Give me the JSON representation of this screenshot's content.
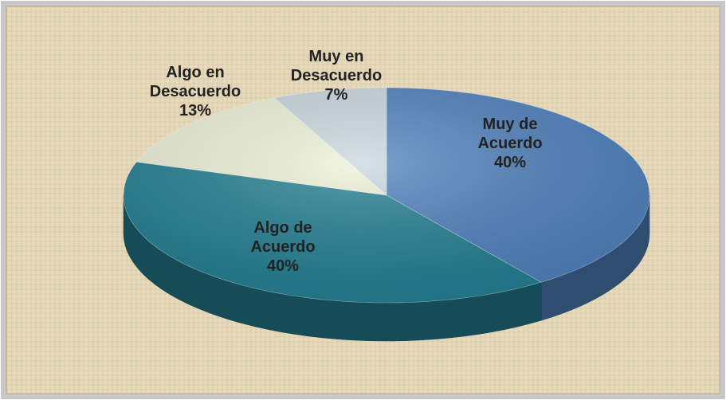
{
  "chart_data": {
    "type": "pie",
    "categories": [
      "Muy de Acuerdo",
      "Algo de Acuerdo",
      "Algo en Desacuerdo",
      "Muy en Desacuerdo"
    ],
    "values": [
      40,
      40,
      13,
      7
    ],
    "value_labels": [
      "40%",
      "40%",
      "13%",
      "7%"
    ],
    "colors": [
      "#4f81bd",
      "#237f92",
      "#eef2d8",
      "#c9d7df"
    ]
  }
}
